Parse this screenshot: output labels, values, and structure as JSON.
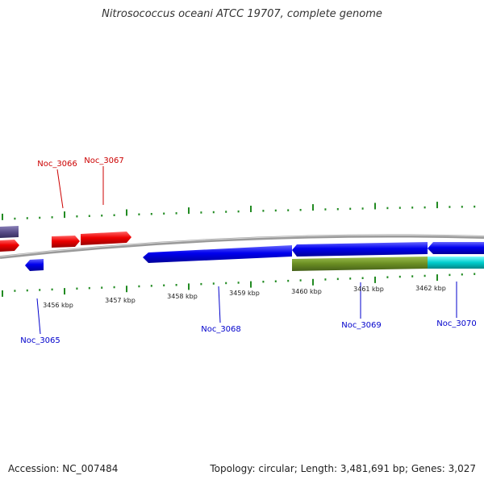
{
  "title": "Nitrosococcus oceani ATCC 19707, complete genome",
  "footer": {
    "accession": "Accession: NC_007484",
    "summary": "Topology: circular; Length: 3,481,691 bp; Genes: 3,027"
  },
  "scale": {
    "labels": [
      "3456 kbp",
      "3457 kbp",
      "3458 kbp",
      "3459 kbp",
      "3460 kbp",
      "3461 kbp",
      "3462 kbp"
    ]
  },
  "genes": [
    {
      "name": "Noc_3065",
      "strand": "reverse",
      "color": "#0000ee"
    },
    {
      "name": "Noc_3066",
      "strand": "forward",
      "color": "#ee0000"
    },
    {
      "name": "Noc_3067",
      "strand": "forward",
      "color": "#ee0000"
    },
    {
      "name": "Noc_3068",
      "strand": "reverse",
      "color": "#0000ee"
    },
    {
      "name": "Noc_3069",
      "strand": "reverse",
      "color": "#0000ee"
    },
    {
      "name": "Noc_3070",
      "strand": "reverse",
      "color": "#0000ee"
    }
  ],
  "colors": {
    "forward_gene": "#ee0000",
    "reverse_gene": "#0000ee",
    "other_feature": "#5a4f8a",
    "feature_olive": "#6b8e23",
    "feature_cyan": "#00cccc",
    "backbone": "#888888",
    "ticks": "#228b22",
    "forward_label": "#cc0000",
    "reverse_label": "#0000cc"
  }
}
